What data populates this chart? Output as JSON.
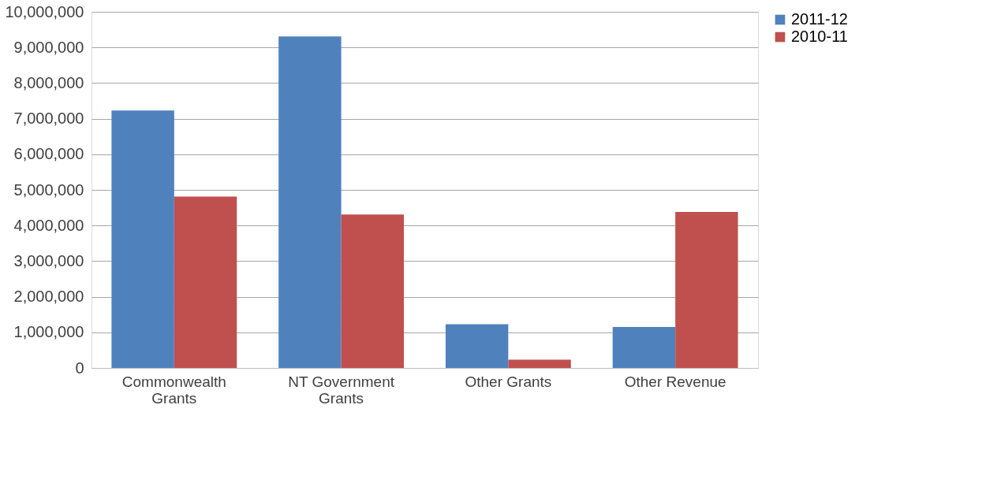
{
  "chart_data": {
    "type": "bar",
    "categories": [
      "Commonwealth Grants",
      "NT Government Grants",
      "Other Grants",
      "Other Revenue"
    ],
    "series": [
      {
        "name": "2011-12",
        "color": "#4f81bd",
        "values": [
          7230000,
          9310000,
          1230000,
          1150000
        ]
      },
      {
        "name": "2010-11",
        "color": "#c0504d",
        "values": [
          4810000,
          4310000,
          230000,
          4380000
        ]
      }
    ],
    "ylim": [
      0,
      10000000
    ],
    "yticks": [
      0,
      {
        "value": 1000000,
        "label": "1,000,000"
      },
      {
        "value": 2000000,
        "label": "2,000,000"
      },
      {
        "value": 3000000,
        "label": "3,000,000"
      },
      {
        "value": 4000000,
        "label": "4,000,000"
      },
      {
        "value": 5000000,
        "label": "5,000,000"
      },
      {
        "value": 6000000,
        "label": "6,000,000"
      },
      {
        "value": 7000000,
        "label": "7,000,000"
      },
      {
        "value": 8000000,
        "label": "8,000,000"
      },
      {
        "value": 9000000,
        "label": "9,000,000"
      },
      {
        "value": 10000000,
        "label": "10,000,000"
      }
    ],
    "grid": "y",
    "legend": "right"
  }
}
